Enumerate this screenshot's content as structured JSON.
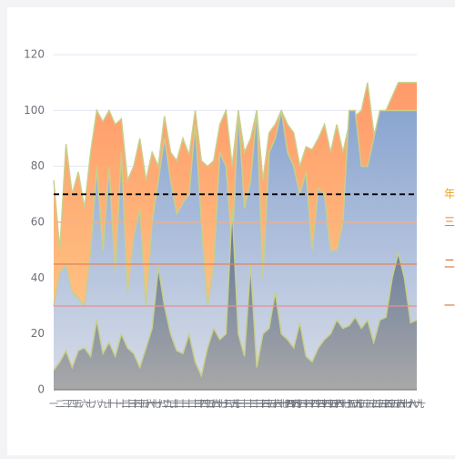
{
  "chart_data": {
    "type": "area",
    "categories": [
      "一",
      "二",
      "三",
      "四",
      "五",
      "六",
      "七",
      "八",
      "九",
      "十",
      "十一",
      "十二",
      "十三",
      "十四",
      "十五",
      "十六",
      "十七",
      "十八",
      "十九",
      "二十",
      "二十一",
      "二十二",
      "二十三",
      "二十四",
      "二十五",
      "二十六",
      "二十七",
      "二十八",
      "二十九",
      "三十",
      "三十一",
      "三十二",
      "三十三",
      "三十四",
      "三十五",
      "三十六",
      "三十七",
      "三十八",
      "三十九",
      "四十",
      "四十一",
      "四十二",
      "四十三",
      "四十四",
      "四十五",
      "四十六",
      "四十七",
      "四十八",
      "四十九",
      "五十",
      "五十一",
      "五十二",
      "五十三",
      "五十四",
      "五十五",
      "五十六",
      "五十七",
      "五十八",
      "五十九",
      "六十"
    ],
    "series": [
      {
        "color": "#ff9a6a",
        "color_end": "#ffd08a",
        "values": [
          75,
          50,
          88,
          70,
          78,
          65,
          85,
          100,
          96,
          100,
          95,
          97,
          75,
          80,
          90,
          75,
          85,
          80,
          98,
          85,
          82,
          90,
          84,
          100,
          82,
          80,
          82,
          95,
          100,
          80,
          100,
          85,
          90,
          100,
          75,
          92,
          95,
          100,
          95,
          92,
          80,
          87,
          86,
          90,
          95,
          85,
          95,
          85,
          95,
          98,
          100,
          110,
          92,
          95,
          100,
          105,
          110,
          110,
          110,
          110
        ]
      },
      {
        "color": "#8aa5d0",
        "color_end": "#d8dde8",
        "values": [
          30,
          42,
          45,
          35,
          33,
          30,
          50,
          80,
          50,
          80,
          42,
          85,
          35,
          55,
          65,
          30,
          60,
          75,
          90,
          75,
          63,
          67,
          70,
          95,
          60,
          30,
          45,
          85,
          80,
          50,
          100,
          65,
          75,
          100,
          40,
          85,
          90,
          100,
          85,
          80,
          70,
          78,
          50,
          72,
          70,
          50,
          50,
          60,
          100,
          100,
          80,
          80,
          90,
          100,
          100,
          100,
          100,
          100,
          100,
          100
        ]
      },
      {
        "color": "#5c7499",
        "color_end": "#a8a8a8",
        "values": [
          7,
          10,
          14,
          8,
          14,
          15,
          12,
          25,
          13,
          17,
          12,
          20,
          15,
          13,
          8,
          15,
          22,
          44,
          30,
          20,
          14,
          13,
          20,
          10,
          5,
          15,
          22,
          18,
          20,
          65,
          20,
          12,
          45,
          8,
          20,
          22,
          35,
          20,
          18,
          15,
          24,
          12,
          10,
          15,
          18,
          20,
          25,
          22,
          23,
          26,
          22,
          25,
          17,
          25,
          26,
          40,
          49,
          40,
          24,
          25
        ]
      }
    ],
    "line_color": "#c9cf8a",
    "mark_lines": [
      {
        "value": 70,
        "label": "年",
        "color": "#000000",
        "dashed": true,
        "label_color": "#f0a020"
      },
      {
        "value": 60,
        "label": "三",
        "color": "#f4b183",
        "dashed": false,
        "label_color": "#e07020"
      },
      {
        "value": 45,
        "label": "二",
        "color": "#e88060",
        "dashed": false,
        "label_color": "#d06020"
      },
      {
        "value": 30,
        "label": "一",
        "color": "#e89090",
        "dashed": false,
        "label_color": "#d06020"
      }
    ],
    "ylim": [
      0,
      120
    ],
    "yticks": [
      0,
      20,
      40,
      60,
      80,
      100,
      120
    ],
    "grid": true
  }
}
